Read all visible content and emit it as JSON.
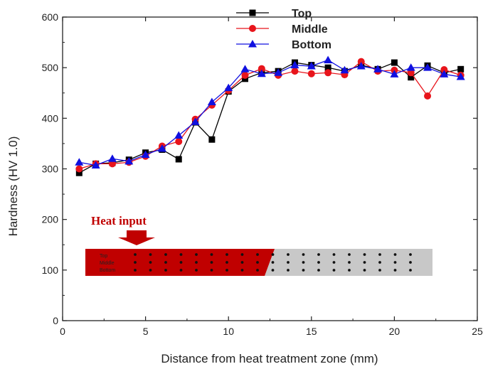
{
  "chart_data": {
    "type": "line",
    "title": "",
    "xlabel": "Distance from heat treatment zone (mm)",
    "ylabel": "Hardness (HV 1.0)",
    "xlim": [
      0,
      25
    ],
    "ylim": [
      0,
      600
    ],
    "xticks": [
      0,
      5,
      10,
      15,
      20,
      25
    ],
    "yticks": [
      0,
      100,
      200,
      300,
      400,
      500,
      600
    ],
    "legend_position": "top-center",
    "series": [
      {
        "name": "Top",
        "color": "#000000",
        "marker": "square",
        "x": [
          1,
          2,
          3,
          4,
          5,
          6,
          7,
          8,
          9,
          10,
          11,
          12,
          13,
          14,
          15,
          16,
          17,
          18,
          19,
          20,
          21,
          22,
          23,
          24
        ],
        "values": [
          292,
          310,
          312,
          318,
          332,
          338,
          319,
          392,
          358,
          453,
          478,
          490,
          493,
          510,
          505,
          500,
          493,
          505,
          497,
          510,
          481,
          504,
          490,
          497
        ]
      },
      {
        "name": "Middle",
        "color": "#e8141b",
        "marker": "circle",
        "x": [
          1,
          2,
          3,
          4,
          5,
          6,
          7,
          8,
          9,
          10,
          11,
          12,
          13,
          14,
          15,
          16,
          17,
          18,
          19,
          20,
          21,
          22,
          23,
          24
        ],
        "values": [
          300,
          310,
          310,
          313,
          325,
          345,
          354,
          398,
          426,
          455,
          485,
          498,
          485,
          493,
          488,
          490,
          486,
          512,
          493,
          495,
          490,
          444,
          496,
          485
        ]
      },
      {
        "name": "Bottom",
        "color": "#1010e0",
        "marker": "triangle",
        "x": [
          1,
          2,
          3,
          4,
          5,
          6,
          7,
          8,
          9,
          10,
          11,
          12,
          13,
          14,
          15,
          16,
          17,
          18,
          19,
          20,
          21,
          22,
          23,
          24
        ],
        "values": [
          313,
          307,
          320,
          315,
          328,
          340,
          366,
          393,
          432,
          460,
          497,
          488,
          490,
          505,
          503,
          515,
          495,
          503,
          497,
          487,
          500,
          500,
          487,
          482
        ]
      }
    ]
  },
  "inset": {
    "heat_label": "Heat input",
    "row_labels": [
      "Top",
      "Middle",
      "Bottom"
    ],
    "heated_color": "#c00000",
    "base_color": "#c8c8c8"
  }
}
